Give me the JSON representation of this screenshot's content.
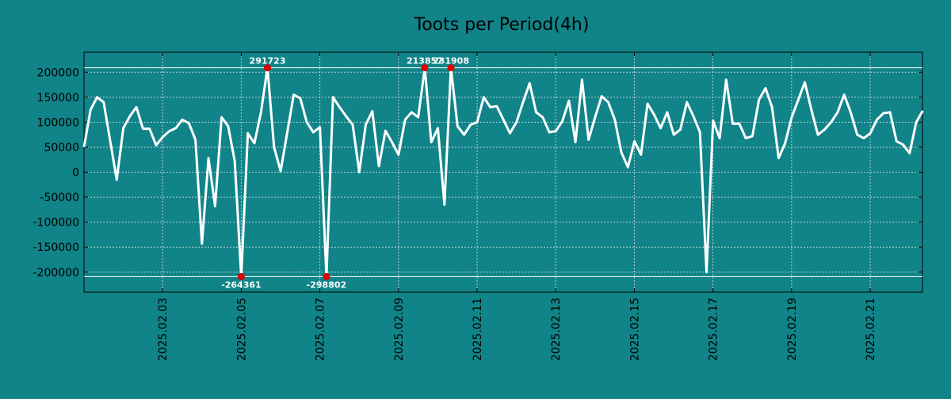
{
  "chart_data": {
    "type": "line",
    "title": "Toots per Period(4h)",
    "xlabel": "",
    "ylabel": "",
    "x_start_day": 1.0,
    "x_end_day": 22.33,
    "step_days": 0.1667,
    "ylim": [
      -240000,
      240000
    ],
    "y_ticks": [
      200000,
      150000,
      100000,
      50000,
      0,
      -50000,
      -100000,
      -150000,
      -200000
    ],
    "y_tick_labels": [
      "200000",
      "150000",
      "100000",
      "50000",
      "0",
      "-50000",
      "-100000",
      "-150000",
      "-200000"
    ],
    "x_ticks": [
      3,
      5,
      7,
      9,
      11,
      13,
      15,
      17,
      19,
      21
    ],
    "x_tick_labels": [
      "2025.02.03",
      "2025.02.05",
      "2025.02.07",
      "2025.02.09",
      "2025.02.11",
      "2025.02.13",
      "2025.02.15",
      "2025.02.17",
      "2025.02.19",
      "2025.02.21"
    ],
    "clip_lines": [
      209000,
      -209000
    ],
    "grid": true,
    "series": [
      {
        "name": "toots",
        "values": [
          50000,
          125000,
          150000,
          140000,
          62000,
          -15000,
          88000,
          112000,
          130000,
          87000,
          87000,
          54000,
          70000,
          82000,
          88000,
          105000,
          98000,
          65000,
          -143000,
          28000,
          -68000,
          110000,
          92000,
          22000,
          -264361,
          78000,
          58000,
          120000,
          291723,
          50000,
          2000,
          78000,
          155000,
          148000,
          100000,
          80000,
          90000,
          -298802,
          150000,
          130000,
          112000,
          95000,
          0,
          95000,
          122000,
          12000,
          83000,
          60000,
          35000,
          105000,
          120000,
          110000,
          213857,
          60000,
          88000,
          -65000,
          231908,
          92000,
          75000,
          95000,
          100000,
          150000,
          130000,
          132000,
          105000,
          78000,
          100000,
          140000,
          178000,
          120000,
          110000,
          80000,
          82000,
          102000,
          143000,
          60000,
          185000,
          65000,
          110000,
          152000,
          140000,
          105000,
          40000,
          10000,
          62000,
          35000,
          137000,
          115000,
          88000,
          120000,
          75000,
          85000,
          140000,
          112000,
          80000,
          -200000,
          103000,
          68000,
          185000,
          97000,
          97000,
          68000,
          72000,
          145000,
          168000,
          130000,
          28000,
          58000,
          110000,
          145000,
          180000,
          125000,
          75000,
          85000,
          100000,
          120000,
          155000,
          120000,
          75000,
          68000,
          78000,
          105000,
          118000,
          120000,
          62000,
          55000,
          38000,
          100000,
          123000
        ]
      }
    ],
    "annotations": [
      {
        "label": "291723",
        "value": 291723,
        "side": "top"
      },
      {
        "label": "-264361",
        "value": -264361,
        "side": "bottom"
      },
      {
        "label": "213857",
        "value": 213857,
        "side": "top"
      },
      {
        "label": "231908",
        "value": 231908,
        "side": "top"
      },
      {
        "label": "-298802",
        "value": -298802,
        "side": "bottom"
      }
    ]
  }
}
